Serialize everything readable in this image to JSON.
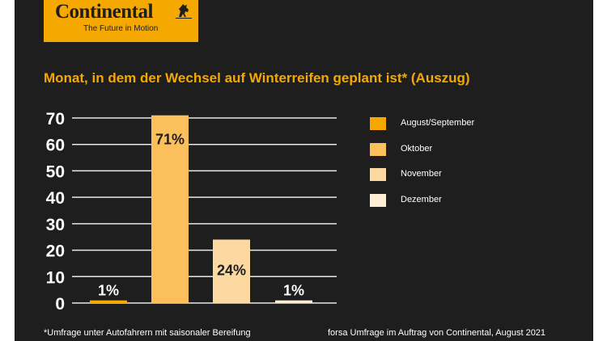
{
  "logo": {
    "wordmark": "Continental",
    "tagline": "The Future in Motion"
  },
  "chart_data": {
    "type": "bar",
    "title": "Monat, in dem der Wechsel auf Winterreifen geplant ist* (Auszug)",
    "categories": [
      "August/September",
      "Oktober",
      "November",
      "Dezember"
    ],
    "values": [
      1,
      71,
      24,
      1
    ],
    "data_labels": [
      "1%",
      "71%",
      "24%",
      "1%"
    ],
    "colors": [
      "#f5a800",
      "#fbbf5c",
      "#fdd9a2",
      "#fdedd5"
    ],
    "yticks": [
      "0",
      "10",
      "20",
      "30",
      "40",
      "50",
      "60",
      "70"
    ],
    "ylim": [
      0,
      70
    ],
    "xlabel": "",
    "ylabel": "",
    "grid": true,
    "legend_position": "right"
  },
  "footer": {
    "note": "*Umfrage unter Autofahrern mit saisonaler Bereifung",
    "source": "forsa Umfrage im Auftrag von Continental, August 2021"
  }
}
